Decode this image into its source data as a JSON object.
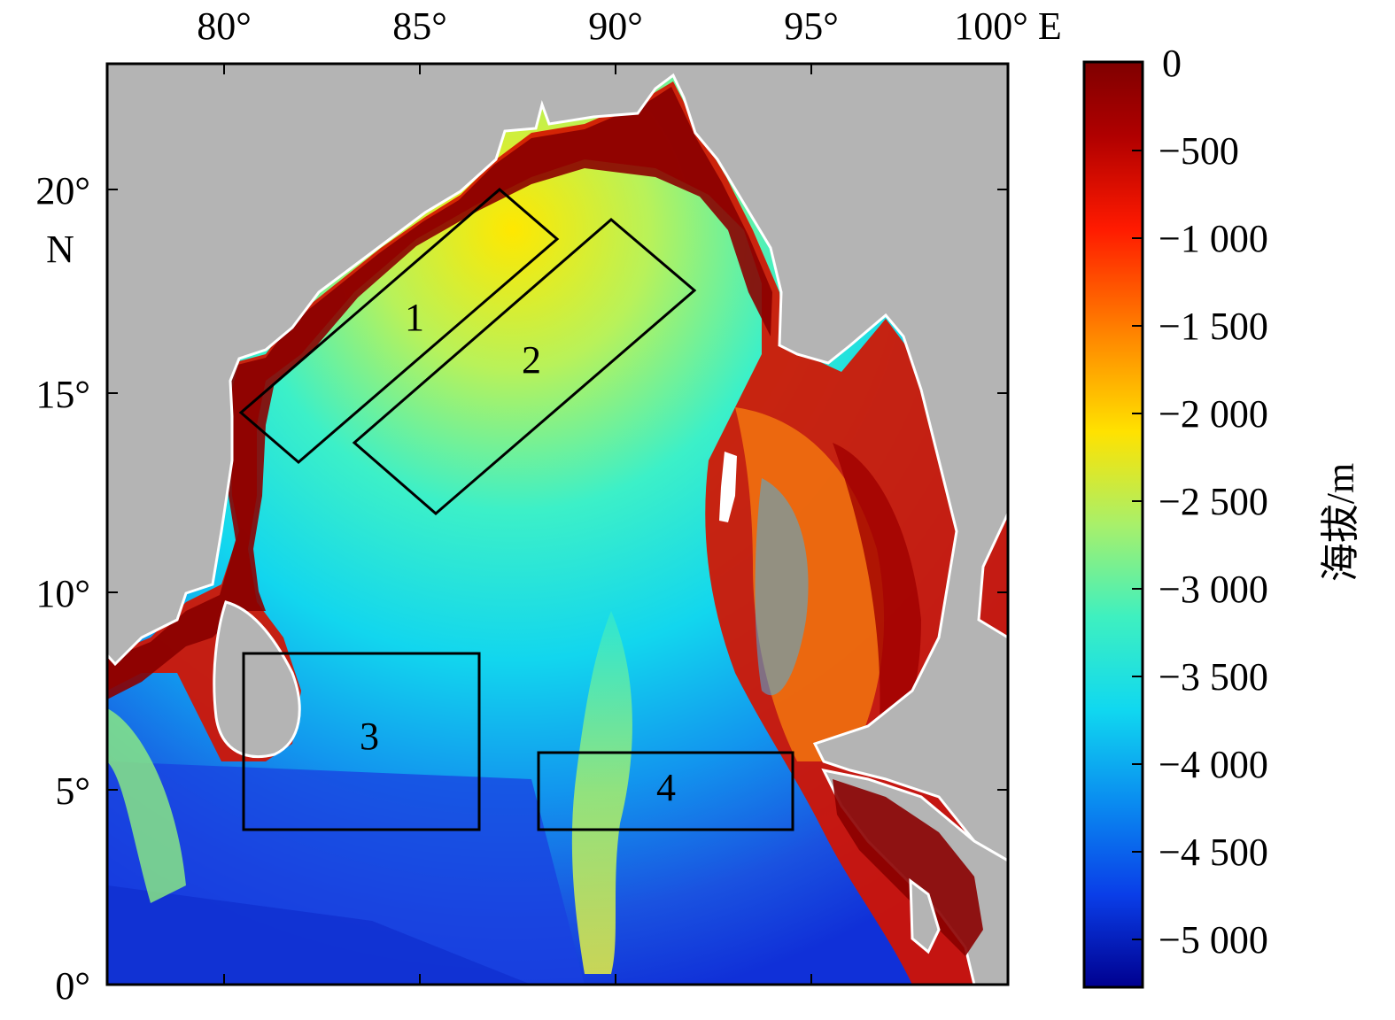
{
  "map": {
    "x_tick_labels": [
      "80°",
      "85°",
      "90°",
      "95°",
      "100° E"
    ],
    "y_tick_labels": [
      "20°",
      "N",
      "15°",
      "10°",
      "5°",
      "0°"
    ],
    "regions": [
      {
        "label": "1"
      },
      {
        "label": "2"
      },
      {
        "label": "3"
      },
      {
        "label": "4"
      }
    ],
    "colors": {
      "land": "#b4b4b4",
      "shallow": "#7a0000",
      "deep": "#1a2fd0",
      "mid": "#19d8e6",
      "outline": "#000000"
    }
  },
  "colorbar": {
    "title": "海拔/m",
    "tick_labels": [
      "0",
      "−500",
      "−1 000",
      "−1 500",
      "−2 000",
      "−2 500",
      "−3 000",
      "−3 500",
      "−4 000",
      "−4 500",
      "−5 000"
    ]
  }
}
